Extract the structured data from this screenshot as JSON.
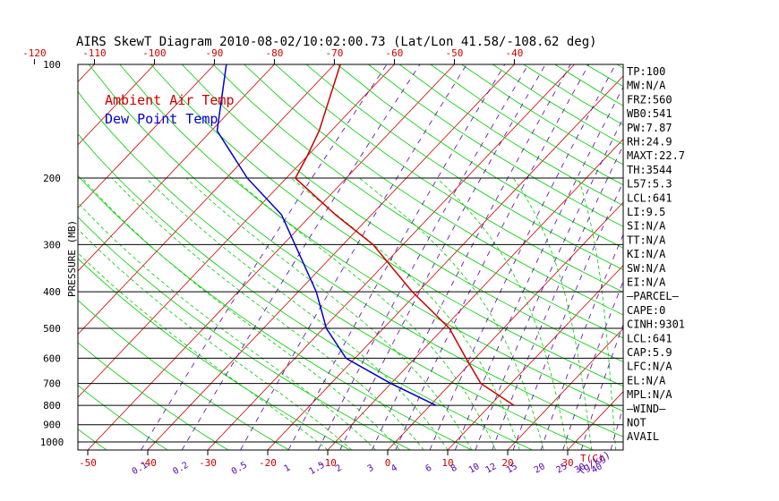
{
  "chart_data": {
    "type": "line",
    "title": "AIRS SkewT Diagram 2010-08-02/10:02:00.73 (Lat/Lon 41.58/-108.62 deg)",
    "ylabel": "PRESSURE (MB)",
    "xunit_label": "T(C)",
    "mixing_unit_label": "(g/kg)",
    "ylim": [
      1050,
      100
    ],
    "xlim_bottom": [
      -52,
      38
    ],
    "top_temp_ticks": [
      -120,
      -110,
      -100,
      -90,
      -80,
      -70,
      -60,
      -50,
      -40
    ],
    "bottom_temp_ticks": [
      -50,
      -40,
      -30,
      -20,
      -10,
      0,
      10,
      20,
      30
    ],
    "pressure_labels": [
      100,
      200,
      300,
      400,
      500,
      600,
      700,
      800,
      900,
      1000
    ],
    "isobars": [
      200,
      300,
      400,
      500,
      600,
      700,
      800,
      900,
      1000
    ],
    "mixing_ratio_labels": [
      "0.1",
      "0.2",
      "0.5",
      "1",
      "1.5",
      "2",
      "3",
      "4",
      "6",
      "8",
      "10",
      "12",
      "15",
      "20",
      "25",
      "30",
      "40"
    ],
    "mixing_ratio_values": [
      0.1,
      0.2,
      0.5,
      1,
      1.5,
      2,
      3,
      4,
      6,
      8,
      10,
      12,
      15,
      20,
      25,
      30,
      40
    ],
    "series": [
      {
        "name": "Ambient Air Temp",
        "color": "#cc0000",
        "points": [
          {
            "p": 100,
            "t": -69
          },
          {
            "p": 150,
            "t": -62
          },
          {
            "p": 175,
            "t": -60
          },
          {
            "p": 200,
            "t": -58.5
          },
          {
            "p": 250,
            "t": -46
          },
          {
            "p": 300,
            "t": -35
          },
          {
            "p": 400,
            "t": -21
          },
          {
            "p": 500,
            "t": -9
          },
          {
            "p": 600,
            "t": -1.5
          },
          {
            "p": 700,
            "t": 5
          },
          {
            "p": 800,
            "t": 14
          }
        ]
      },
      {
        "name": "Dew Point Temp",
        "color": "#0000cc",
        "points": [
          {
            "p": 100,
            "t": -88
          },
          {
            "p": 150,
            "t": -79
          },
          {
            "p": 200,
            "t": -66.5
          },
          {
            "p": 250,
            "t": -55
          },
          {
            "p": 300,
            "t": -48
          },
          {
            "p": 400,
            "t": -37
          },
          {
            "p": 500,
            "t": -29.5
          },
          {
            "p": 600,
            "t": -21.5
          },
          {
            "p": 700,
            "t": -10
          },
          {
            "p": 800,
            "t": 1
          }
        ]
      }
    ],
    "side_panel": [
      "TP:100",
      "MW:N/A",
      "FRZ:560",
      "WB0:541",
      "PW:7.87",
      "RH:24.9",
      "MAXT:22.7",
      "TH:3544",
      "L57:5.3",
      "LCL:641",
      "LI:9.5",
      "SI:N/A",
      "TT:N/A",
      "KI:N/A",
      "SW:N/A",
      "EI:N/A",
      "—PARCEL—",
      "CAPE:0",
      "CINH:9301",
      "LCL:641",
      "CAP:5.9",
      "LFC:N/A",
      "EL:N/A",
      "MPL:N/A",
      "—WIND—",
      "NOT",
      "AVAIL"
    ],
    "colors": {
      "isotherm": "#cc0000",
      "dry_adiabat": "#00cc00",
      "moist_adiabat": "#00cc00",
      "mixing_ratio": "#5500aa",
      "isobar": "#000000",
      "axis_labels": "#cc0000",
      "mixing_labels": "#5500aa",
      "ylabel": "#000000"
    }
  }
}
